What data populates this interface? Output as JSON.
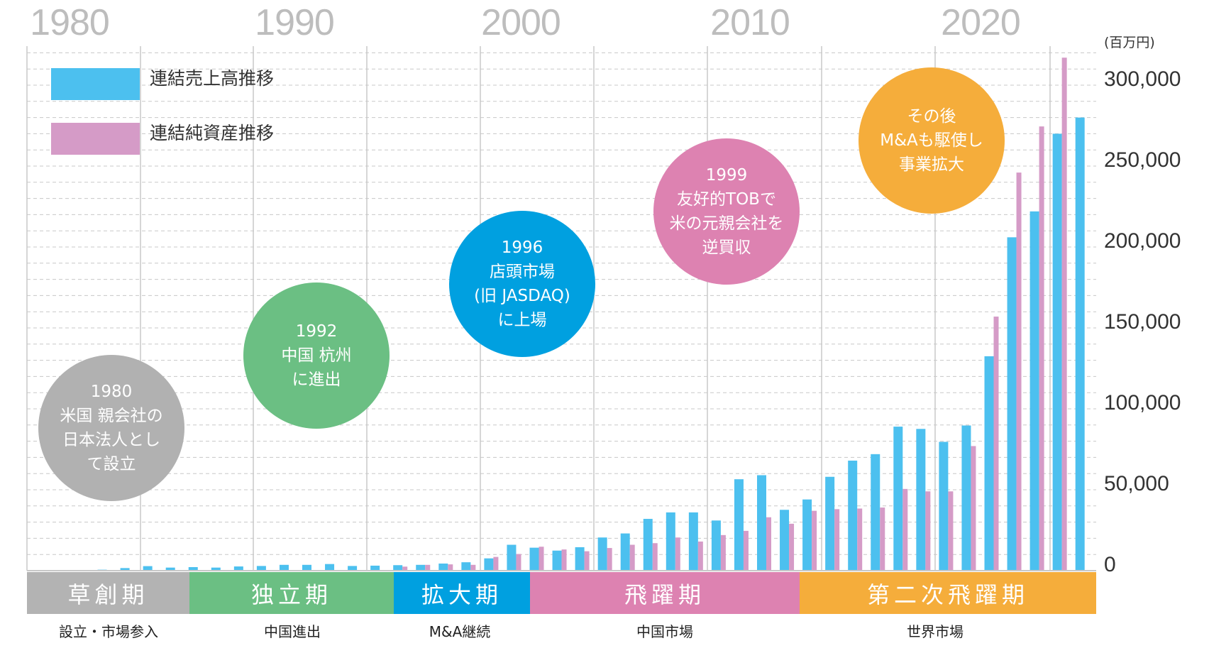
{
  "colors": {
    "sales": "#4cc0ef",
    "net_assets": "#d59bc7",
    "grid": "#c8c8c8",
    "year_label": "#bdbdbd"
  },
  "chart_data": {
    "type": "bar",
    "title": "",
    "xlabel": "",
    "ylabel": "(百万円)",
    "unit": "(百万円)",
    "ylim": [
      0,
      320000
    ],
    "yticks": [
      0,
      50000,
      100000,
      150000,
      200000,
      250000,
      300000
    ],
    "ytick_labels": [
      "0",
      "50,000",
      "100,000",
      "150,000",
      "200,000",
      "250,000",
      "300,000"
    ],
    "year_labels": [
      "1980",
      "1990",
      "2000",
      "2010",
      "2020"
    ],
    "grid": true,
    "legend_position": "top-left",
    "x": [
      1980,
      1981,
      1982,
      1983,
      1984,
      1985,
      1986,
      1987,
      1988,
      1989,
      1990,
      1991,
      1992,
      1993,
      1994,
      1995,
      1996,
      1997,
      1998,
      1999,
      2000,
      2001,
      2002,
      2003,
      2004,
      2005,
      2006,
      2007,
      2008,
      2009,
      2010,
      2011,
      2012,
      2013,
      2014,
      2015,
      2016,
      2017,
      2018,
      2019,
      2020,
      2021,
      2022,
      2023,
      2024
    ],
    "series": [
      {
        "name": "連結売上高推移",
        "values": [
          200,
          600,
          1600,
          2800,
          1900,
          2200,
          1900,
          2600,
          2900,
          3600,
          3600,
          4100,
          2900,
          3100,
          3400,
          3600,
          4400,
          5200,
          7600,
          16000,
          14200,
          12400,
          14500,
          20500,
          23000,
          32000,
          36000,
          36000,
          31000,
          56500,
          59000,
          37600,
          44000,
          58000,
          68000,
          72000,
          89000,
          87600,
          79600,
          89700,
          132500,
          206000,
          222000,
          270000,
          280000
        ]
      },
      {
        "name": "連結純資産推移",
        "values": [
          null,
          null,
          null,
          null,
          null,
          null,
          null,
          null,
          null,
          null,
          null,
          null,
          null,
          null,
          2500,
          3600,
          3900,
          3600,
          8500,
          10300,
          14800,
          13100,
          12000,
          14000,
          16000,
          17000,
          20500,
          18000,
          22000,
          24600,
          33000,
          29000,
          37000,
          38000,
          38400,
          39000,
          50500,
          49000,
          49000,
          77000,
          157000,
          246000,
          274500,
          317000,
          null
        ]
      }
    ]
  },
  "bubbles": [
    {
      "lines": [
        "1980",
        "米国 親会社の",
        "日本法人とし",
        "て設立"
      ],
      "color": "#b1b1b1"
    },
    {
      "lines": [
        "1992",
        "中国 杭州",
        "に進出"
      ],
      "color": "#6bbf83"
    },
    {
      "lines": [
        "1996",
        "店頭市場",
        "(旧 JASDAQ)",
        "に上場"
      ],
      "color": "#00a0e0"
    },
    {
      "lines": [
        "1999",
        "友好的TOBで",
        "米の元親会社を",
        "逆買収"
      ],
      "color": "#dd82b1"
    },
    {
      "lines": [
        "その後",
        "M&Aも駆使し",
        "事業拡大"
      ],
      "color": "#f5ad3b"
    }
  ],
  "phases": [
    {
      "label": "草創期",
      "sub": "設立・市場参入",
      "color": "#b3b3b3"
    },
    {
      "label": "独立期",
      "sub": "中国進出",
      "color": "#6bbf83"
    },
    {
      "label": "拡大期",
      "sub": "M&A継続",
      "color": "#00a0e0"
    },
    {
      "label": "飛躍期",
      "sub": "中国市場",
      "color": "#dd82b1"
    },
    {
      "label": "第二次飛躍期",
      "sub": "世界市場",
      "color": "#f5ad3b"
    }
  ]
}
